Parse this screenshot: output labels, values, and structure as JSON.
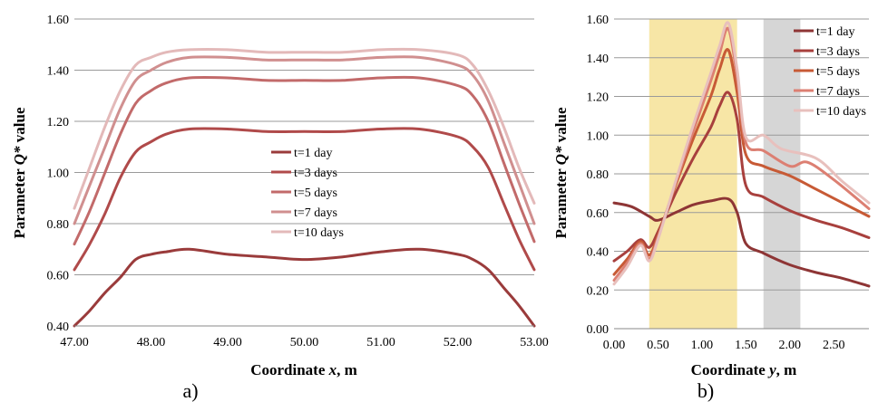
{
  "chart_data": [
    {
      "type": "line",
      "panel_label": "a)",
      "xlabel": "Coordinate x, m",
      "ylabel": "Parameter Q* value",
      "xlim": [
        47,
        53
      ],
      "ylim": [
        0.4,
        1.6
      ],
      "xticks": [
        "47.00",
        "48.00",
        "49.00",
        "50.00",
        "51.00",
        "52.00",
        "53.00"
      ],
      "yticks": [
        "0.40",
        "0.60",
        "0.80",
        "1.00",
        "1.20",
        "1.40",
        "1.60"
      ],
      "grid": "horizontal",
      "legend_position": "center",
      "series": [
        {
          "name": "t=1 day",
          "color": "#9a3b3b",
          "points": [
            [
              47.0,
              0.4
            ],
            [
              47.2,
              0.46
            ],
            [
              47.4,
              0.53
            ],
            [
              47.6,
              0.59
            ],
            [
              47.8,
              0.66
            ],
            [
              48.0,
              0.68
            ],
            [
              48.2,
              0.69
            ],
            [
              48.5,
              0.7
            ],
            [
              49.0,
              0.68
            ],
            [
              49.5,
              0.67
            ],
            [
              50.0,
              0.66
            ],
            [
              50.5,
              0.67
            ],
            [
              51.0,
              0.69
            ],
            [
              51.5,
              0.7
            ],
            [
              52.0,
              0.68
            ],
            [
              52.2,
              0.66
            ],
            [
              52.4,
              0.62
            ],
            [
              52.6,
              0.55
            ],
            [
              52.8,
              0.48
            ],
            [
              53.0,
              0.4
            ]
          ]
        },
        {
          "name": "t=3 days",
          "color": "#b04a4a",
          "points": [
            [
              47.0,
              0.62
            ],
            [
              47.2,
              0.72
            ],
            [
              47.4,
              0.84
            ],
            [
              47.6,
              0.98
            ],
            [
              47.8,
              1.08
            ],
            [
              48.0,
              1.12
            ],
            [
              48.2,
              1.15
            ],
            [
              48.5,
              1.17
            ],
            [
              49.0,
              1.17
            ],
            [
              49.5,
              1.16
            ],
            [
              50.0,
              1.16
            ],
            [
              50.5,
              1.16
            ],
            [
              51.0,
              1.17
            ],
            [
              51.5,
              1.17
            ],
            [
              52.0,
              1.14
            ],
            [
              52.2,
              1.1
            ],
            [
              52.4,
              1.02
            ],
            [
              52.6,
              0.88
            ],
            [
              52.8,
              0.74
            ],
            [
              53.0,
              0.62
            ]
          ]
        },
        {
          "name": "t=5 days",
          "color": "#c26a6a",
          "points": [
            [
              47.0,
              0.72
            ],
            [
              47.2,
              0.85
            ],
            [
              47.4,
              1.0
            ],
            [
              47.6,
              1.15
            ],
            [
              47.8,
              1.27
            ],
            [
              48.0,
              1.32
            ],
            [
              48.2,
              1.35
            ],
            [
              48.5,
              1.37
            ],
            [
              49.0,
              1.37
            ],
            [
              49.5,
              1.36
            ],
            [
              50.0,
              1.36
            ],
            [
              50.5,
              1.36
            ],
            [
              51.0,
              1.37
            ],
            [
              51.5,
              1.37
            ],
            [
              52.0,
              1.34
            ],
            [
              52.2,
              1.3
            ],
            [
              52.4,
              1.2
            ],
            [
              52.6,
              1.04
            ],
            [
              52.8,
              0.88
            ],
            [
              53.0,
              0.73
            ]
          ]
        },
        {
          "name": "t=7 days",
          "color": "#d08f8f",
          "points": [
            [
              47.0,
              0.8
            ],
            [
              47.2,
              0.95
            ],
            [
              47.4,
              1.1
            ],
            [
              47.6,
              1.25
            ],
            [
              47.8,
              1.36
            ],
            [
              48.0,
              1.4
            ],
            [
              48.2,
              1.43
            ],
            [
              48.5,
              1.45
            ],
            [
              49.0,
              1.45
            ],
            [
              49.5,
              1.44
            ],
            [
              50.0,
              1.44
            ],
            [
              50.5,
              1.44
            ],
            [
              51.0,
              1.45
            ],
            [
              51.5,
              1.45
            ],
            [
              52.0,
              1.42
            ],
            [
              52.2,
              1.38
            ],
            [
              52.4,
              1.28
            ],
            [
              52.6,
              1.12
            ],
            [
              52.8,
              0.96
            ],
            [
              53.0,
              0.8
            ]
          ]
        },
        {
          "name": "t=10 days",
          "color": "#e3b9b9",
          "points": [
            [
              47.0,
              0.86
            ],
            [
              47.2,
              1.02
            ],
            [
              47.4,
              1.18
            ],
            [
              47.6,
              1.32
            ],
            [
              47.8,
              1.42
            ],
            [
              48.0,
              1.45
            ],
            [
              48.2,
              1.47
            ],
            [
              48.5,
              1.48
            ],
            [
              49.0,
              1.48
            ],
            [
              49.5,
              1.47
            ],
            [
              50.0,
              1.47
            ],
            [
              50.5,
              1.47
            ],
            [
              51.0,
              1.48
            ],
            [
              51.5,
              1.48
            ],
            [
              52.0,
              1.46
            ],
            [
              52.2,
              1.42
            ],
            [
              52.4,
              1.32
            ],
            [
              52.6,
              1.18
            ],
            [
              52.8,
              1.02
            ],
            [
              53.0,
              0.88
            ]
          ]
        }
      ]
    },
    {
      "type": "line",
      "panel_label": "b)",
      "xlabel": "Coordinate y, m",
      "ylabel": "Parameter Q* value",
      "xlim": [
        0,
        2.9
      ],
      "ylim": [
        0,
        1.6
      ],
      "xticks": [
        "0.00",
        "0.50",
        "1.00",
        "1.50",
        "2.00",
        "2.50"
      ],
      "yticks": [
        "0.00",
        "0.20",
        "0.40",
        "0.60",
        "0.80",
        "1.00",
        "1.20",
        "1.40",
        "1.60"
      ],
      "grid": "horizontal",
      "legend_position": "top-right",
      "highlight_bands": [
        {
          "from": 0.4,
          "to": 1.4,
          "color": "#f7e6a6"
        },
        {
          "from": 1.7,
          "to": 2.12,
          "color": "#d6d6d6"
        }
      ],
      "series": [
        {
          "name": "t=1 day",
          "color": "#8e3535",
          "points": [
            [
              0.0,
              0.65
            ],
            [
              0.2,
              0.63
            ],
            [
              0.4,
              0.58
            ],
            [
              0.5,
              0.56
            ],
            [
              0.7,
              0.6
            ],
            [
              0.9,
              0.64
            ],
            [
              1.1,
              0.66
            ],
            [
              1.3,
              0.67
            ],
            [
              1.4,
              0.6
            ],
            [
              1.5,
              0.44
            ],
            [
              1.7,
              0.39
            ],
            [
              2.0,
              0.33
            ],
            [
              2.3,
              0.29
            ],
            [
              2.6,
              0.26
            ],
            [
              2.9,
              0.22
            ]
          ]
        },
        {
          "name": "t=3 days",
          "color": "#a8403d",
          "points": [
            [
              0.0,
              0.35
            ],
            [
              0.15,
              0.4
            ],
            [
              0.3,
              0.46
            ],
            [
              0.4,
              0.42
            ],
            [
              0.5,
              0.5
            ],
            [
              0.7,
              0.7
            ],
            [
              0.9,
              0.88
            ],
            [
              1.1,
              1.04
            ],
            [
              1.2,
              1.15
            ],
            [
              1.3,
              1.22
            ],
            [
              1.4,
              1.08
            ],
            [
              1.5,
              0.74
            ],
            [
              1.7,
              0.68
            ],
            [
              2.0,
              0.61
            ],
            [
              2.3,
              0.56
            ],
            [
              2.6,
              0.52
            ],
            [
              2.9,
              0.47
            ]
          ]
        },
        {
          "name": "t=5 days",
          "color": "#c75a35",
          "points": [
            [
              0.0,
              0.28
            ],
            [
              0.15,
              0.36
            ],
            [
              0.3,
              0.45
            ],
            [
              0.4,
              0.38
            ],
            [
              0.5,
              0.48
            ],
            [
              0.7,
              0.74
            ],
            [
              0.9,
              0.98
            ],
            [
              1.1,
              1.2
            ],
            [
              1.2,
              1.34
            ],
            [
              1.3,
              1.44
            ],
            [
              1.4,
              1.22
            ],
            [
              1.5,
              0.9
            ],
            [
              1.7,
              0.84
            ],
            [
              2.0,
              0.79
            ],
            [
              2.3,
              0.72
            ],
            [
              2.6,
              0.65
            ],
            [
              2.9,
              0.58
            ]
          ]
        },
        {
          "name": "t=7 days",
          "color": "#dc7f72",
          "points": [
            [
              0.0,
              0.25
            ],
            [
              0.15,
              0.34
            ],
            [
              0.3,
              0.44
            ],
            [
              0.4,
              0.36
            ],
            [
              0.5,
              0.47
            ],
            [
              0.7,
              0.75
            ],
            [
              0.9,
              1.02
            ],
            [
              1.1,
              1.28
            ],
            [
              1.2,
              1.42
            ],
            [
              1.3,
              1.55
            ],
            [
              1.4,
              1.3
            ],
            [
              1.5,
              0.96
            ],
            [
              1.7,
              0.92
            ],
            [
              2.0,
              0.84
            ],
            [
              2.2,
              0.86
            ],
            [
              2.5,
              0.77
            ],
            [
              2.9,
              0.62
            ]
          ]
        },
        {
          "name": "t=10 days",
          "color": "#e8c0bd",
          "points": [
            [
              0.0,
              0.23
            ],
            [
              0.15,
              0.32
            ],
            [
              0.3,
              0.43
            ],
            [
              0.4,
              0.35
            ],
            [
              0.5,
              0.46
            ],
            [
              0.7,
              0.76
            ],
            [
              0.9,
              1.05
            ],
            [
              1.1,
              1.32
            ],
            [
              1.2,
              1.46
            ],
            [
              1.3,
              1.58
            ],
            [
              1.4,
              1.34
            ],
            [
              1.5,
              0.99
            ],
            [
              1.7,
              1.0
            ],
            [
              1.9,
              0.93
            ],
            [
              2.3,
              0.88
            ],
            [
              2.6,
              0.76
            ],
            [
              2.9,
              0.65
            ]
          ]
        }
      ]
    }
  ]
}
